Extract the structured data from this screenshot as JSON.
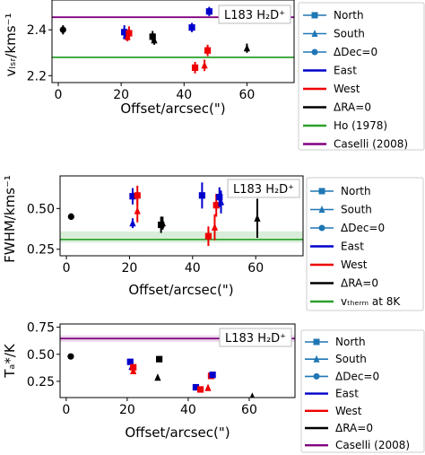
{
  "chart_data": [
    {
      "type": "scatter",
      "tag": "L183 H₂D⁺",
      "xlabel": "Offset/arcsec(\")",
      "ylabel": "vₗₛᵣ/kms⁻¹",
      "xlim": [
        -2,
        75
      ],
      "ylim": [
        2.17,
        2.53
      ],
      "xticks": [
        0,
        20,
        40,
        60
      ],
      "yticks": [
        2.2,
        2.4
      ],
      "ytick_labels": [
        "2.2",
        "2.4"
      ],
      "legend_position": "right",
      "legend": [
        "North",
        "South",
        "ΔDec=0",
        "East",
        "West",
        "ΔRA=0",
        "Ho (1978)",
        "Caselli (2008)"
      ],
      "reference_lines": [
        {
          "name": "Ho (1978)",
          "y": 2.28,
          "color": "#2ca02c"
        },
        {
          "name": "Caselli (2008)",
          "y": 2.455,
          "color": "#800080"
        }
      ],
      "points": [
        {
          "x": 1.5,
          "y": 2.4,
          "err": 0.02,
          "marker": "circle",
          "color": "#000000"
        },
        {
          "x": 21.0,
          "y": 2.39,
          "err": 0.03,
          "marker": "square",
          "color": "#0000cc"
        },
        {
          "x": 21.5,
          "y": 2.375,
          "err": 0.02,
          "marker": "triangle",
          "color": "#0000cc"
        },
        {
          "x": 22.5,
          "y": 2.385,
          "err": 0.03,
          "marker": "square",
          "color": "#ee0000"
        },
        {
          "x": 22.0,
          "y": 2.37,
          "err": 0.02,
          "marker": "triangle",
          "color": "#ee0000"
        },
        {
          "x": 30.0,
          "y": 2.37,
          "err": 0.025,
          "marker": "square",
          "color": "#000000"
        },
        {
          "x": 30.5,
          "y": 2.355,
          "err": 0.02,
          "marker": "triangle",
          "color": "#000000"
        },
        {
          "x": 42.5,
          "y": 2.41,
          "err": 0.02,
          "marker": "square",
          "color": "#0000cc"
        },
        {
          "x": 43.5,
          "y": 2.235,
          "err": 0.025,
          "marker": "square",
          "color": "#ee0000"
        },
        {
          "x": 46.5,
          "y": 2.245,
          "err": 0.025,
          "marker": "triangle",
          "color": "#ee0000"
        },
        {
          "x": 47.5,
          "y": 2.31,
          "err": 0.025,
          "marker": "square",
          "color": "#ee0000"
        },
        {
          "x": 48.0,
          "y": 2.48,
          "err": 0.02,
          "marker": "square",
          "color": "#0000cc"
        },
        {
          "x": 60.0,
          "y": 2.32,
          "err": 0.02,
          "marker": "triangle",
          "color": "#000000"
        }
      ]
    },
    {
      "type": "scatter",
      "tag": "L183 H₂D⁺",
      "xlabel": "Offset/arcsec(\")",
      "ylabel": "FWHM/kms⁻¹",
      "xlim": [
        -2,
        75
      ],
      "ylim": [
        0.21,
        0.7
      ],
      "xticks": [
        0,
        20,
        40,
        60
      ],
      "yticks": [
        0.25,
        0.5
      ],
      "ytick_labels": [
        "0.25",
        "0.50"
      ],
      "legend_position": "right",
      "legend": [
        "North",
        "South",
        "ΔDec=0",
        "East",
        "West",
        "ΔRA=0",
        "vₜₕₑᵣₘ at 8K"
      ],
      "band": {
        "y0": 0.29,
        "y1": 0.36,
        "line": 0.31,
        "color": "#2ca02c"
      },
      "points": [
        {
          "x": 1.5,
          "y": 0.45,
          "err": 0.02,
          "marker": "circle",
          "color": "#000000"
        },
        {
          "x": 21.0,
          "y": 0.575,
          "err": 0.05,
          "marker": "square",
          "color": "#0000cc"
        },
        {
          "x": 21.0,
          "y": 0.41,
          "err": 0.03,
          "marker": "triangle",
          "color": "#0000cc"
        },
        {
          "x": 22.5,
          "y": 0.58,
          "err": 0.06,
          "marker": "square",
          "color": "#ee0000"
        },
        {
          "x": 22.5,
          "y": 0.485,
          "err": 0.07,
          "marker": "triangle",
          "color": "#ee0000"
        },
        {
          "x": 30.0,
          "y": 0.4,
          "err": 0.05,
          "marker": "square",
          "color": "#000000"
        },
        {
          "x": 30.5,
          "y": 0.41,
          "err": 0.04,
          "marker": "triangle",
          "color": "#000000"
        },
        {
          "x": 43.0,
          "y": 0.58,
          "err": 0.08,
          "marker": "square",
          "color": "#0000cc"
        },
        {
          "x": 45.0,
          "y": 0.33,
          "err": 0.06,
          "marker": "square",
          "color": "#ee0000"
        },
        {
          "x": 47.0,
          "y": 0.385,
          "err": 0.08,
          "marker": "triangle",
          "color": "#ee0000"
        },
        {
          "x": 47.5,
          "y": 0.52,
          "err": 0.07,
          "marker": "square",
          "color": "#ee0000"
        },
        {
          "x": 48.5,
          "y": 0.57,
          "err": 0.06,
          "marker": "square",
          "color": "#0000cc"
        },
        {
          "x": 49.0,
          "y": 0.54,
          "err": 0.07,
          "marker": "triangle",
          "color": "#0000cc"
        },
        {
          "x": 60.5,
          "y": 0.44,
          "err": 0.12,
          "marker": "triangle",
          "color": "#000000"
        }
      ]
    },
    {
      "type": "scatter",
      "tag": "L183 H₂D⁺",
      "xlabel": "Offset/arcsec(\")",
      "ylabel": "Tₐ*/K",
      "xlim": [
        -2,
        75
      ],
      "ylim": [
        0.1,
        0.78
      ],
      "xticks": [
        0,
        20,
        40,
        60
      ],
      "yticks": [
        0.25,
        0.5,
        0.75
      ],
      "ytick_labels": [
        "0.25",
        "0.50",
        "0.75"
      ],
      "legend_position": "right",
      "legend": [
        "North",
        "South",
        "ΔDec=0",
        "East",
        "West",
        "ΔRA=0",
        "Caselli (2008)"
      ],
      "reference_lines": [
        {
          "name": "Caselli (2008)",
          "y": 0.645,
          "color": "#800080",
          "band": [
            0.615,
            0.675
          ]
        }
      ],
      "points": [
        {
          "x": 1.5,
          "y": 0.48,
          "err": 0.01,
          "marker": "circle",
          "color": "#000000"
        },
        {
          "x": 21.0,
          "y": 0.43,
          "err": 0.01,
          "marker": "square",
          "color": "#0000cc"
        },
        {
          "x": 21.5,
          "y": 0.385,
          "err": 0.01,
          "marker": "triangle",
          "color": "#0000cc"
        },
        {
          "x": 22.0,
          "y": 0.38,
          "err": 0.01,
          "marker": "square",
          "color": "#ee0000"
        },
        {
          "x": 22.0,
          "y": 0.345,
          "err": 0.01,
          "marker": "triangle",
          "color": "#ee0000"
        },
        {
          "x": 30.5,
          "y": 0.455,
          "err": 0.01,
          "marker": "square",
          "color": "#000000"
        },
        {
          "x": 30.0,
          "y": 0.285,
          "err": 0.01,
          "marker": "triangle",
          "color": "#000000"
        },
        {
          "x": 42.5,
          "y": 0.195,
          "err": 0.01,
          "marker": "square",
          "color": "#0000cc"
        },
        {
          "x": 44.0,
          "y": 0.175,
          "err": 0.01,
          "marker": "square",
          "color": "#ee0000"
        },
        {
          "x": 46.5,
          "y": 0.19,
          "err": 0.01,
          "marker": "triangle",
          "color": "#ee0000"
        },
        {
          "x": 47.5,
          "y": 0.3,
          "err": 0.01,
          "marker": "square",
          "color": "#ee0000"
        },
        {
          "x": 48.0,
          "y": 0.31,
          "err": 0.01,
          "marker": "square",
          "color": "#0000cc"
        },
        {
          "x": 61.0,
          "y": 0.11,
          "err": 0.005,
          "marker": "triangle",
          "color": "#000000"
        }
      ]
    }
  ]
}
